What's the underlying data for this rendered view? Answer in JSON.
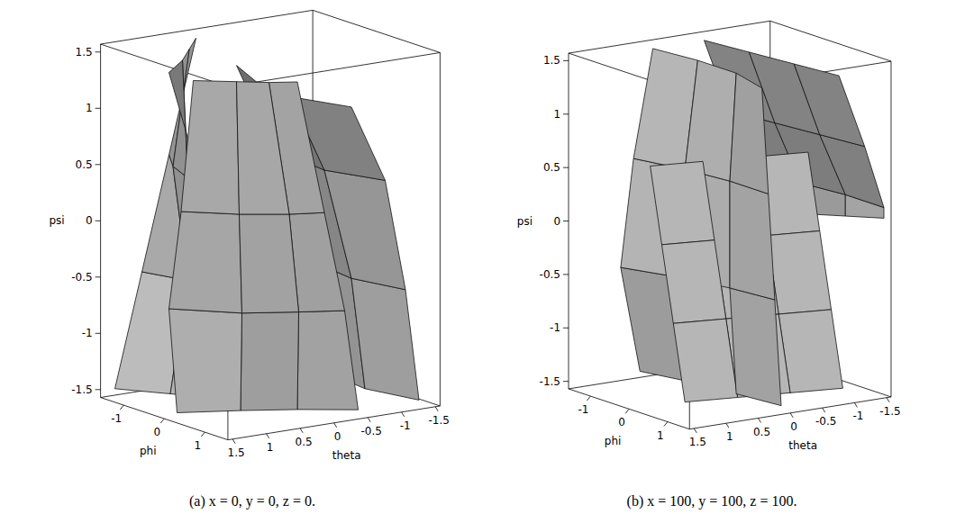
{
  "chart_data": [
    {
      "type": "surface3d",
      "caption": "(a) x = 0, y = 0, z = 0.",
      "x_label": "phi",
      "y_label": "theta",
      "z_label": "psi",
      "xlim": [
        -1.57,
        1.57
      ],
      "ylim": [
        -1.57,
        1.57
      ],
      "zlim": [
        -1.57,
        1.57
      ],
      "xticks": [
        -1,
        0,
        1
      ],
      "yticks": [
        1.5,
        1,
        0.5,
        0,
        -0.5,
        -1,
        -1.5
      ],
      "zticks": [
        -1.5,
        -1,
        -0.5,
        0,
        0.5,
        1,
        1.5
      ],
      "color": "#c8c8c8",
      "surfaces": [
        [
          [
            [
              -1.5,
              1.4,
              -1.5
            ],
            [
              -0.8,
              1.0,
              -1.5
            ],
            [
              -0.1,
              0.6,
              -1.5
            ],
            [
              0.6,
              0.3,
              -1.5
            ]
          ],
          [
            [
              -1.5,
              1.0,
              -0.5
            ],
            [
              -0.7,
              0.8,
              -0.5
            ],
            [
              0.0,
              0.5,
              -0.5
            ],
            [
              0.7,
              0.4,
              -0.5
            ]
          ],
          [
            [
              -1.5,
              0.6,
              0.5
            ],
            [
              -0.9,
              0.9,
              0.5
            ],
            [
              -0.2,
              1.1,
              0.5
            ],
            [
              0.5,
              1.3,
              0.5
            ]
          ],
          [
            [
              -1.5,
              0.2,
              1.5
            ],
            [
              -1.0,
              0.6,
              1.5
            ],
            [
              -0.5,
              1.0,
              1.5
            ],
            [
              0.0,
              1.5,
              1.5
            ]
          ]
        ],
        [
          [
            [
              -1.5,
              -1.4,
              -1.5
            ],
            [
              -0.5,
              -1.2,
              -1.5
            ],
            [
              0.5,
              -1.1,
              -1.5
            ],
            [
              1.5,
              -1.3,
              -1.5
            ]
          ],
          [
            [
              -1.5,
              -1.2,
              -0.5
            ],
            [
              -0.5,
              -1.0,
              -0.5
            ],
            [
              0.5,
              -0.9,
              -0.5
            ],
            [
              1.5,
              -1.1,
              -0.5
            ]
          ],
          [
            [
              -1.5,
              -0.9,
              0.5
            ],
            [
              -0.5,
              -0.6,
              0.5
            ],
            [
              0.5,
              -0.5,
              0.5
            ],
            [
              1.5,
              -0.8,
              0.5
            ]
          ],
          [
            [
              -1.5,
              -0.4,
              1.2
            ],
            [
              -0.5,
              -0.1,
              1.2
            ],
            [
              0.5,
              0.0,
              1.2
            ],
            [
              1.5,
              -0.3,
              1.2
            ]
          ]
        ],
        [
          [
            [
              0.2,
              1.5,
              -1.5
            ],
            [
              0.6,
              0.8,
              -1.5
            ],
            [
              1.0,
              0.2,
              -1.5
            ],
            [
              1.5,
              -0.4,
              -1.5
            ]
          ],
          [
            [
              0.0,
              1.5,
              -0.6
            ],
            [
              0.8,
              0.9,
              -0.6
            ],
            [
              1.2,
              0.3,
              -0.6
            ],
            [
              1.5,
              -0.2,
              -0.6
            ]
          ],
          [
            [
              0.3,
              1.5,
              0.3
            ],
            [
              0.9,
              1.0,
              0.3
            ],
            [
              1.3,
              0.5,
              0.3
            ],
            [
              1.5,
              0.1,
              0.3
            ]
          ],
          [
            [
              0.6,
              1.5,
              1.5
            ],
            [
              1.0,
              1.1,
              1.5
            ],
            [
              1.3,
              0.8,
              1.5
            ],
            [
              1.5,
              0.5,
              1.5
            ]
          ]
        ]
      ]
    },
    {
      "type": "surface3d",
      "caption": "(b) x = 100, y = 100, z = 100.",
      "x_label": "phi",
      "y_label": "theta",
      "z_label": "psi",
      "xlim": [
        -1.57,
        1.57
      ],
      "ylim": [
        -1.57,
        1.57
      ],
      "zlim": [
        -1.57,
        1.57
      ],
      "xticks": [
        -1,
        0,
        1
      ],
      "yticks": [
        1.5,
        1,
        0.5,
        0,
        -0.5,
        -1,
        -1.5
      ],
      "zticks": [
        -1.5,
        -1,
        -0.5,
        0,
        0.5,
        1,
        1.5
      ],
      "color": "#c8c8c8",
      "surfaces": [
        [
          [
            [
              -1.5,
              0.5,
              -1.5
            ],
            [
              -0.5,
              0.3,
              -1.5
            ],
            [
              0.5,
              0.2,
              -1.5
            ],
            [
              1.5,
              0.1,
              -1.5
            ]
          ],
          [
            [
              -1.5,
              0.8,
              -0.5
            ],
            [
              -0.5,
              0.5,
              -0.5
            ],
            [
              0.5,
              0.3,
              -0.5
            ],
            [
              1.5,
              0.2,
              -0.5
            ]
          ],
          [
            [
              -1.5,
              0.6,
              0.5
            ],
            [
              -0.5,
              0.4,
              0.5
            ],
            [
              0.5,
              0.3,
              0.5
            ],
            [
              1.5,
              0.3,
              0.5
            ]
          ],
          [
            [
              -1.5,
              0.3,
              1.5
            ],
            [
              -0.5,
              0.2,
              1.5
            ],
            [
              0.5,
              0.2,
              1.5
            ],
            [
              1.5,
              0.4,
              1.5
            ]
          ]
        ],
        [
          [
            [
              -1.5,
              -0.5,
              1.5
            ],
            [
              -0.5,
              -0.6,
              1.5
            ],
            [
              0.5,
              -0.7,
              1.5
            ],
            [
              1.5,
              -0.8,
              1.5
            ]
          ],
          [
            [
              -1.5,
              -0.9,
              0.8
            ],
            [
              -0.5,
              -1.0,
              0.8
            ],
            [
              0.5,
              -1.1,
              0.8
            ],
            [
              1.5,
              -1.2,
              0.8
            ]
          ],
          [
            [
              -1.5,
              -1.3,
              0.2
            ],
            [
              -0.5,
              -1.4,
              0.2
            ],
            [
              0.5,
              -1.5,
              0.2
            ],
            [
              1.5,
              -1.5,
              0.2
            ]
          ],
          [
            [
              -1.5,
              -1.5,
              -0.2
            ],
            [
              -0.5,
              -1.5,
              -0.1
            ],
            [
              0.5,
              -1.5,
              0.0
            ],
            [
              1.5,
              -1.5,
              0.1
            ]
          ]
        ],
        [
          [
            [
              0.5,
              1.0,
              -1.5
            ],
            [
              0.7,
              0.3,
              -1.5
            ],
            [
              0.9,
              -0.4,
              -1.5
            ],
            [
              1.1,
              -1.1,
              -1.5
            ]
          ],
          [
            [
              0.2,
              1.0,
              -0.8
            ],
            [
              0.4,
              0.3,
              -0.8
            ],
            [
              0.6,
              -0.4,
              -0.8
            ],
            [
              0.8,
              -1.1,
              -0.8
            ]
          ],
          [
            [
              -0.1,
              1.0,
              -0.1
            ],
            [
              0.1,
              0.3,
              -0.1
            ],
            [
              0.3,
              -0.4,
              -0.1
            ],
            [
              0.5,
              -1.1,
              -0.1
            ]
          ],
          [
            [
              -0.4,
              1.0,
              0.6
            ],
            [
              -0.2,
              0.3,
              0.6
            ],
            [
              0.0,
              -0.4,
              0.6
            ],
            [
              0.2,
              -1.1,
              0.6
            ]
          ]
        ]
      ]
    }
  ]
}
